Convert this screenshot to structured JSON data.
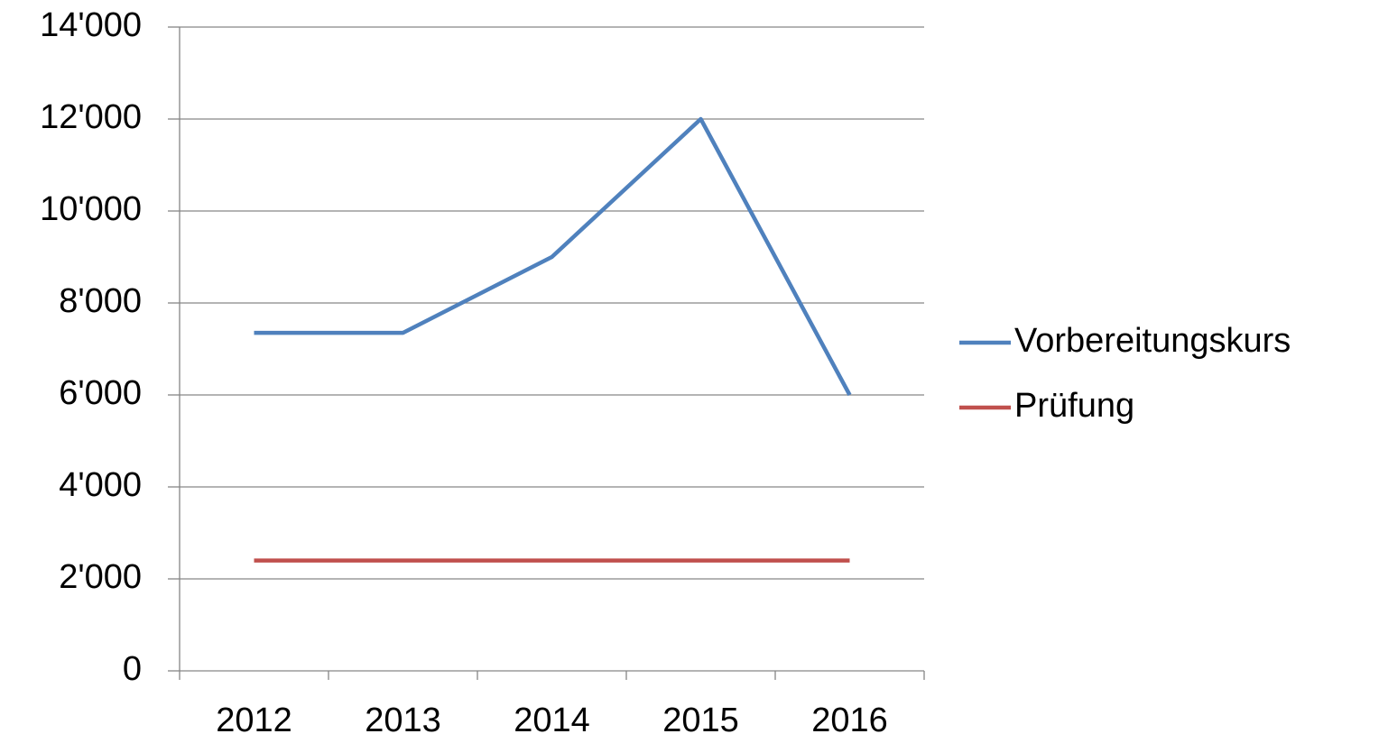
{
  "chart_data": {
    "type": "line",
    "categories": [
      "2012",
      "2013",
      "2014",
      "2015",
      "2016"
    ],
    "series": [
      {
        "name": "Vorbereitungskurs",
        "color": "#4f81bd",
        "values": [
          7350,
          7350,
          9000,
          12000,
          6000
        ]
      },
      {
        "name": "Prüfung",
        "color": "#c0504d",
        "values": [
          2400,
          2400,
          2400,
          2400,
          2400
        ]
      }
    ],
    "ylim": [
      0,
      14000
    ],
    "yticks": [
      0,
      {
        "value": 2000,
        "label": "2'000"
      },
      {
        "value": 4000,
        "label": "4'000"
      },
      {
        "value": 6000,
        "label": "6'000"
      },
      {
        "value": 8000,
        "label": "8'000"
      },
      {
        "value": 10000,
        "label": "10'000"
      },
      {
        "value": 12000,
        "label": "12'000"
      },
      {
        "value": 14000,
        "label": "14'000"
      }
    ],
    "grid": true,
    "legend": "right"
  }
}
